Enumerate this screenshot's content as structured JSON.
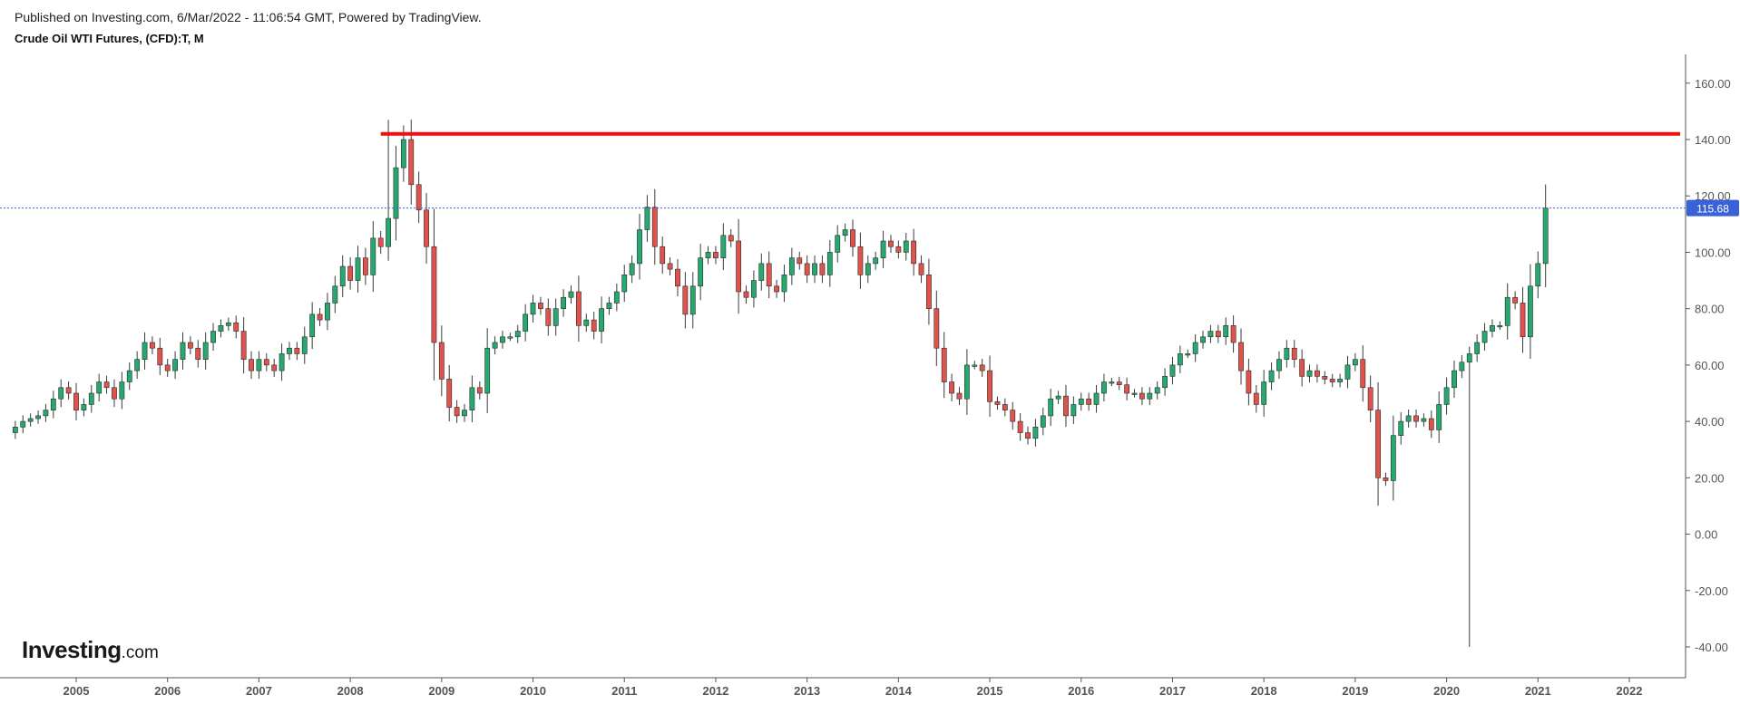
{
  "header": {
    "published": "Published on Investing.com, 6/Mar/2022 - 11:06:54 GMT, Powered by TradingView.",
    "symbol": "Crude Oil WTI Futures, (CFD):T, M"
  },
  "logo": {
    "main": "Investing",
    "suffix": ".com"
  },
  "colors": {
    "up": "#26a96e",
    "down": "#e0524c",
    "wick": "#3a3a3a",
    "resistance": "#ee1111",
    "price_line": "#3a62d8",
    "price_badge": "#3a62d8"
  },
  "chart_data": {
    "type": "candlestick",
    "title": "Crude Oil WTI Futures, (CFD):T, M",
    "interval": "monthly",
    "ylim": [
      -45,
      170
    ],
    "y_ticks": [
      "160.00",
      "140.00",
      "120.00",
      "100.00",
      "80.00",
      "60.00",
      "40.00",
      "20.00",
      "0.00",
      "-20.00",
      "-40.00"
    ],
    "x_ticks": [
      "2005",
      "2006",
      "2007",
      "2008",
      "2009",
      "2010",
      "2011",
      "2012",
      "2013",
      "2014",
      "2015",
      "2016",
      "2017",
      "2018",
      "2019",
      "2020",
      "2021",
      "2022"
    ],
    "last_price": 115.68,
    "last_price_label": "115.68",
    "resistance_level": 142,
    "grid": false,
    "close_series": {
      "start": "2004-05",
      "values": [
        38,
        40,
        41,
        42,
        44,
        48,
        52,
        50,
        44,
        46,
        50,
        54,
        52,
        48,
        54,
        58,
        62,
        68,
        66,
        60,
        58,
        62,
        68,
        66,
        62,
        68,
        72,
        74,
        75,
        72,
        62,
        58,
        62,
        60,
        58,
        64,
        66,
        64,
        70,
        78,
        76,
        82,
        88,
        95,
        90,
        98,
        92,
        105,
        102,
        112,
        130,
        140,
        124,
        115,
        102,
        68,
        55,
        45,
        42,
        44,
        52,
        50,
        66,
        68,
        70,
        70,
        72,
        78,
        82,
        80,
        74,
        80,
        84,
        86,
        74,
        76,
        72,
        80,
        82,
        86,
        92,
        96,
        108,
        116,
        102,
        96,
        94,
        88,
        78,
        88,
        98,
        100,
        98,
        106,
        104,
        86,
        84,
        90,
        96,
        88,
        86,
        92,
        98,
        96,
        92,
        96,
        92,
        100,
        106,
        108,
        102,
        92,
        96,
        98,
        104,
        102,
        100,
        104,
        96,
        92,
        80,
        66,
        54,
        50,
        48,
        60,
        60,
        58,
        47,
        46,
        44,
        40,
        36,
        34,
        38,
        42,
        48,
        49,
        42,
        46,
        48,
        46,
        50,
        54,
        54,
        53,
        50,
        50,
        48,
        50,
        52,
        56,
        60,
        64,
        64,
        68,
        70,
        72,
        70,
        74,
        68,
        58,
        50,
        46,
        54,
        58,
        62,
        66,
        62,
        56,
        58,
        56,
        55,
        54,
        55,
        60,
        62,
        52,
        44,
        20,
        19,
        35,
        40,
        42,
        40,
        41,
        37,
        46,
        52,
        58,
        61,
        64,
        68,
        72,
        74,
        74,
        84,
        82,
        70,
        88,
        96,
        115.68
      ]
    }
  }
}
